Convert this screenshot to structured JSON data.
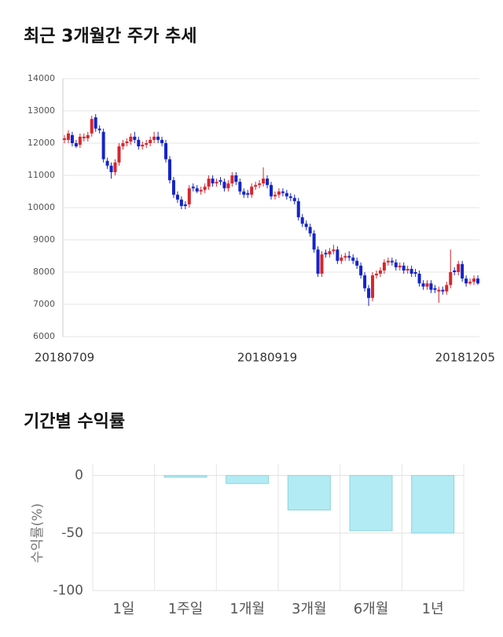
{
  "chart_data": [
    {
      "type": "candlestick",
      "title": "최근 3개월간 주가 추세",
      "categories": [
        "20180709",
        null,
        null,
        null,
        null,
        null,
        null,
        null,
        null,
        null,
        null,
        null,
        null,
        null,
        null,
        null,
        null,
        null,
        null,
        null,
        null,
        null,
        null,
        null,
        null,
        null,
        null,
        null,
        null,
        null,
        null,
        null,
        null,
        null,
        null,
        null,
        null,
        null,
        null,
        null,
        null,
        null,
        null,
        null,
        null,
        null,
        null,
        null,
        null,
        null,
        null,
        null,
        "20180919",
        null,
        null,
        null,
        null,
        null,
        null,
        null,
        null,
        null,
        null,
        null,
        null,
        null,
        null,
        null,
        null,
        null,
        null,
        null,
        null,
        null,
        null,
        null,
        null,
        null,
        null,
        null,
        null,
        null,
        null,
        null,
        null,
        null,
        null,
        null,
        null,
        null,
        null,
        null,
        null,
        null,
        null,
        null,
        null,
        null,
        null,
        null,
        null,
        null,
        null,
        null,
        null,
        null,
        "20181205"
      ],
      "open": [
        12100,
        12100,
        12250,
        12000,
        11950,
        12150,
        12150,
        12300,
        12800,
        12450,
        12350,
        11450,
        11300,
        11100,
        11400,
        11900,
        12000,
        12050,
        12200,
        12100,
        11900,
        11950,
        12000,
        12100,
        12200,
        12100,
        12000,
        11500,
        10850,
        10400,
        10250,
        10100,
        10100,
        10650,
        10600,
        10500,
        10550,
        10650,
        10900,
        10750,
        10850,
        10800,
        10600,
        10750,
        11000,
        10800,
        10500,
        10450,
        10400,
        10650,
        10700,
        10750,
        10900,
        10700,
        10350,
        10400,
        10500,
        10450,
        10350,
        10300,
        10200,
        9700,
        9500,
        9400,
        9200,
        8700,
        7950,
        8600,
        8550,
        8650,
        8700,
        8350,
        8450,
        8500,
        8450,
        8350,
        8200,
        7900,
        7500,
        7200,
        7900,
        7950,
        8050,
        8300,
        8350,
        8300,
        8150,
        8200,
        8050,
        8100,
        8000,
        7950,
        7650,
        7550,
        7650,
        7500,
        7400,
        7450,
        7400,
        7600,
        8050,
        8000,
        8250,
        7800,
        7650,
        7700,
        7800
      ],
      "high": [
        12250,
        12400,
        12350,
        12100,
        12300,
        12300,
        12350,
        12850,
        12900,
        12550,
        12450,
        11550,
        11400,
        11500,
        12000,
        12100,
        12150,
        12300,
        12350,
        12200,
        12050,
        12100,
        12200,
        12350,
        12350,
        12200,
        12100,
        11600,
        10950,
        10500,
        10350,
        10200,
        10700,
        10750,
        10700,
        10650,
        10750,
        11000,
        11000,
        10900,
        10950,
        10900,
        10850,
        11100,
        11100,
        10900,
        10600,
        10550,
        10750,
        10800,
        10850,
        11250,
        11000,
        10800,
        10500,
        10600,
        10600,
        10550,
        10450,
        10400,
        10300,
        9800,
        9600,
        9500,
        9300,
        8800,
        8650,
        8700,
        8750,
        8850,
        8800,
        8550,
        8600,
        8650,
        8550,
        8450,
        8300,
        8000,
        7600,
        8000,
        8050,
        8150,
        8400,
        8450,
        8450,
        8400,
        8300,
        8300,
        8200,
        8200,
        8100,
        8050,
        7750,
        7750,
        7750,
        7600,
        7550,
        7550,
        7700,
        8700,
        8150,
        8350,
        8350,
        7900,
        7800,
        7900,
        7900
      ],
      "low": [
        12000,
        12000,
        11900,
        11850,
        11850,
        12050,
        12050,
        12200,
        12350,
        12300,
        11400,
        11200,
        10900,
        11000,
        11300,
        11800,
        11900,
        11950,
        12000,
        11800,
        11800,
        11850,
        11900,
        12000,
        12000,
        11900,
        11400,
        10750,
        10300,
        10150,
        9950,
        9950,
        10000,
        10500,
        10450,
        10400,
        10450,
        10550,
        10650,
        10650,
        10700,
        10500,
        10500,
        10650,
        10700,
        10400,
        10300,
        10300,
        10300,
        10550,
        10600,
        10650,
        10600,
        10250,
        10250,
        10300,
        10350,
        10250,
        10200,
        10100,
        9600,
        9400,
        9300,
        9100,
        8600,
        7850,
        7850,
        8450,
        8450,
        8550,
        8250,
        8250,
        8350,
        8350,
        8250,
        8100,
        7800,
        7400,
        6950,
        7100,
        7800,
        7850,
        7950,
        8200,
        8200,
        8050,
        8050,
        7950,
        7950,
        7850,
        7850,
        7550,
        7450,
        7450,
        7350,
        7350,
        7050,
        7300,
        7300,
        7500,
        7900,
        7900,
        7700,
        7550,
        7600,
        7600,
        7600
      ],
      "close": [
        12150,
        12300,
        12000,
        11900,
        12200,
        12200,
        12250,
        12750,
        12450,
        12400,
        11500,
        11300,
        11100,
        11400,
        11900,
        12000,
        12050,
        12200,
        12100,
        11900,
        11950,
        12000,
        12100,
        12200,
        12100,
        12000,
        11500,
        10850,
        10400,
        10250,
        10050,
        10050,
        10600,
        10600,
        10500,
        10550,
        10650,
        10900,
        10750,
        10800,
        10800,
        10600,
        10750,
        11000,
        10800,
        10500,
        10400,
        10400,
        10650,
        10700,
        10750,
        10900,
        10700,
        10350,
        10400,
        10500,
        10450,
        10350,
        10300,
        10200,
        9700,
        9500,
        9400,
        9200,
        8700,
        7950,
        8550,
        8550,
        8650,
        8700,
        8350,
        8450,
        8500,
        8450,
        8350,
        8200,
        7900,
        7500,
        7200,
        7900,
        7950,
        8050,
        8300,
        8350,
        8300,
        8150,
        8200,
        8050,
        8100,
        7950,
        7950,
        7650,
        7550,
        7650,
        7450,
        7450,
        7450,
        7400,
        7600,
        8000,
        8000,
        8250,
        7800,
        7650,
        7700,
        7800,
        7650
      ],
      "up_color": "#d7262e",
      "down_color": "#1424c8",
      "ylim": [
        6000,
        14000
      ],
      "yticks": [
        6000,
        7000,
        8000,
        9000,
        10000,
        11000,
        12000,
        13000,
        14000
      ],
      "grid": true
    },
    {
      "type": "bar",
      "title": "기간별 수익률",
      "y_label": "수익률(%)",
      "categories": [
        "1일",
        "1주일",
        "1개월",
        "3개월",
        "6개월",
        "1년"
      ],
      "values": [
        0,
        -1.5,
        -7,
        -30,
        -48,
        -50
      ],
      "color": "#b2ebf4",
      "ylim": [
        -100,
        10
      ],
      "yticks": [
        0,
        -50,
        -100
      ],
      "grid": true
    }
  ]
}
